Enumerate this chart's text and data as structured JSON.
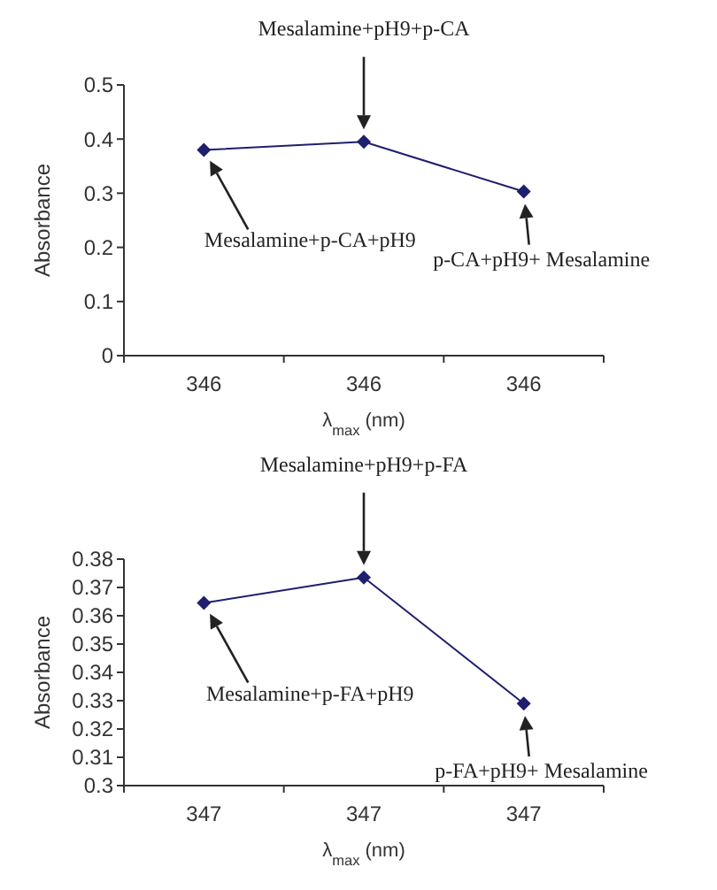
{
  "chart_data": [
    {
      "type": "line",
      "categories": [
        "346",
        "346",
        "346"
      ],
      "ylabel": "Absorbance",
      "xlabel": "λ$_{max}$ (nm)",
      "series": [
        {
          "color": "#1f1f6e",
          "values": [
            0.38,
            0.395,
            0.303
          ]
        }
      ],
      "ylim": [
        0,
        0.5
      ],
      "yticks": [
        0,
        0.1,
        0.2,
        0.3,
        0.4,
        0.5
      ],
      "marker": "diamond",
      "annotations": [
        "Mesalamine+p-CA+pH9",
        "Mesalamine+pH9+p-CA",
        "p-CA+pH9+ Mesalamine"
      ]
    },
    {
      "type": "line",
      "categories": [
        "347",
        "347",
        "347"
      ],
      "ylabel": "Absorbance",
      "xlabel": "λ$_{max}$ (nm)",
      "series": [
        {
          "color": "#1f1f6e",
          "values": [
            0.3645,
            0.3735,
            0.329
          ]
        }
      ],
      "ylim": [
        0.3,
        0.38
      ],
      "yticks": [
        0.3,
        0.31,
        0.32,
        0.33,
        0.34,
        0.35,
        0.36,
        0.37,
        0.38
      ],
      "marker": "diamond",
      "annotations": [
        "Mesalamine+p-FA+pH9",
        "Mesalamine+pH9+p-FA",
        "p-FA+pH9+ Mesalamine"
      ]
    }
  ]
}
